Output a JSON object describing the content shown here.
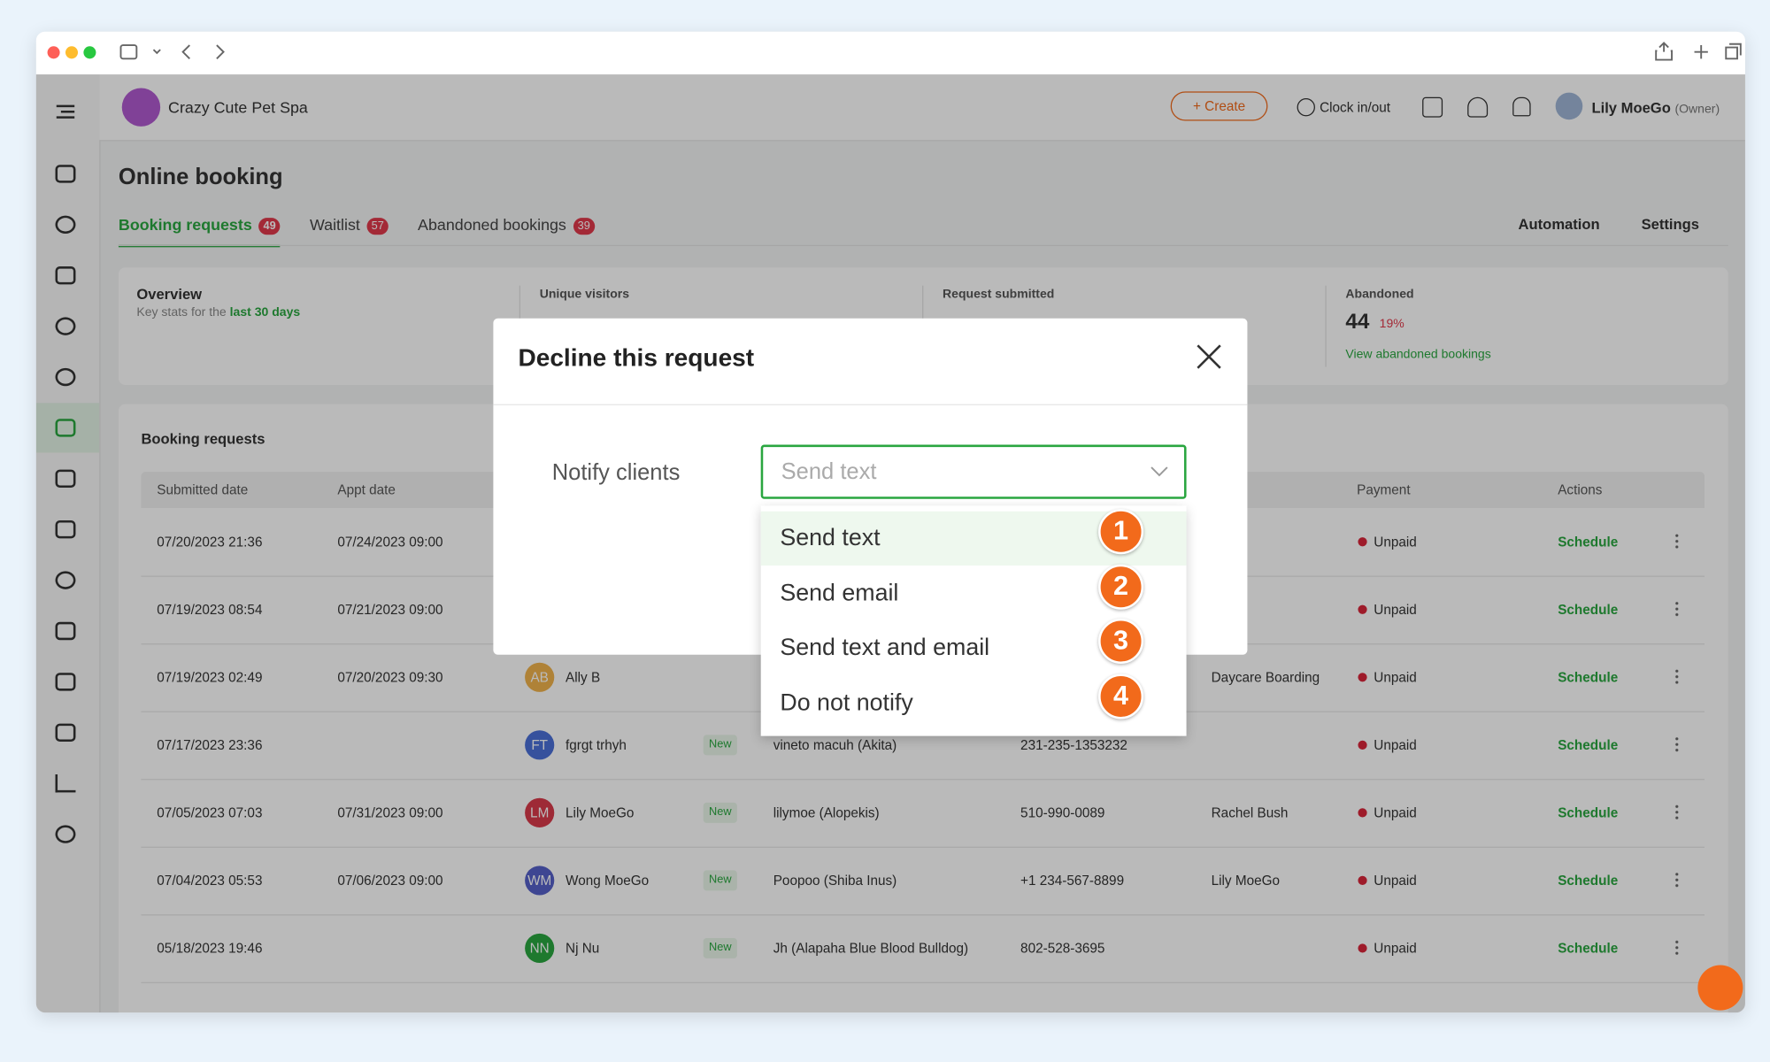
{
  "app": {
    "business": "Crazy Cute Pet Spa",
    "create": "+ Create",
    "clock": "Clock in/out",
    "user": "Lily MoeGo",
    "role": "(Owner)"
  },
  "page": {
    "title": "Online booking",
    "tabs": [
      {
        "label": "Booking requests",
        "count": "49"
      },
      {
        "label": "Waitlist",
        "count": "57"
      },
      {
        "label": "Abandoned bookings",
        "count": "39"
      }
    ],
    "automation": "Automation",
    "settings": "Settings"
  },
  "overview": {
    "title": "Overview",
    "subtitle": "Key stats for the",
    "range": "last 30 days",
    "stats": [
      {
        "label": "Unique visitors"
      },
      {
        "label": "Request submitted"
      },
      {
        "label": "Abandoned",
        "value": "44",
        "change": "19%",
        "link": "View abandoned bookings"
      }
    ]
  },
  "table": {
    "title": "Booking requests",
    "columns": {
      "submitted": "Submitted date",
      "appt": "Appt date",
      "payment": "Payment",
      "actions": "Actions"
    },
    "rows": [
      {
        "submitted": "07/20/2023 21:36",
        "appt": "07/24/2023 09:00",
        "payment": "Unpaid",
        "action": "Schedule"
      },
      {
        "submitted": "07/19/2023 08:54",
        "appt": "07/21/2023 09:00",
        "payment": "Unpaid",
        "action": "Schedule"
      },
      {
        "submitted": "07/19/2023 02:49",
        "appt": "07/20/2023 09:30",
        "initials": "AB",
        "client": "Ally B",
        "staff": "Daycare Boarding",
        "payment": "Unpaid",
        "action": "Schedule"
      },
      {
        "submitted": "07/17/2023 23:36",
        "initials": "FT",
        "client": "fgrgt trhyh",
        "tag": "New",
        "pet": "vineto macuh (Akita)",
        "phone": "231-235-1353232",
        "payment": "Unpaid",
        "action": "Schedule"
      },
      {
        "submitted": "07/05/2023 07:03",
        "appt": "07/31/2023 09:00",
        "initials": "LM",
        "client": "Lily MoeGo",
        "tag": "New",
        "pet": "lilymoe (Alopekis)",
        "phone": "510-990-0089",
        "staff": "Rachel Bush",
        "payment": "Unpaid",
        "action": "Schedule"
      },
      {
        "submitted": "07/04/2023 05:53",
        "appt": "07/06/2023 09:00",
        "initials": "WM",
        "client": "Wong MoeGo",
        "tag": "New",
        "pet": "Poopoo (Shiba Inus)",
        "phone": "+1 234-567-8899",
        "staff": "Lily MoeGo",
        "payment": "Unpaid",
        "action": "Schedule"
      },
      {
        "submitted": "05/18/2023 19:46",
        "initials": "NN",
        "client": "Nj Nu",
        "tag": "New",
        "pet": "Jh (Alapaha Blue Blood Bulldog)",
        "phone": "802-528-3695",
        "payment": "Unpaid",
        "action": "Schedule"
      }
    ]
  },
  "modal": {
    "title": "Decline this request",
    "label": "Notify clients",
    "placeholder": "Send text",
    "options": [
      "Send text",
      "Send email",
      "Send text and email",
      "Do not notify"
    ],
    "steps": [
      "1",
      "2",
      "3",
      "4"
    ]
  }
}
